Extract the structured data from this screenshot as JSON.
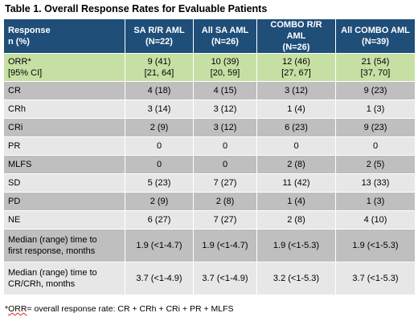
{
  "title": "Table 1. Overall Response Rates for Evaluable Patients",
  "headers": {
    "col0_line1": "Response",
    "col0_line2": "n (%)",
    "col1_line1": "SA R/R AML",
    "col1_line2": "(N=22)",
    "col2_line1": "All SA AML",
    "col2_line2": "(N=26)",
    "col3_line1": "COMBO R/R AML",
    "col3_line2": "(N=26)",
    "col4_line1": "All COMBO AML",
    "col4_line2": "(N=39)"
  },
  "orr_row": {
    "label_line1": "ORR*",
    "label_line2": "[95% CI]",
    "v1_line1": "9 (41)",
    "v1_line2": "[21, 64]",
    "v2_line1": "10 (39)",
    "v2_line2": "[20, 59]",
    "v3_line1": "12 (46)",
    "v3_line2": "[27, 67]",
    "v4_line1": "21 (54)",
    "v4_line2": "[37, 70]"
  },
  "rows": [
    {
      "label": "CR",
      "v1": "4 (18)",
      "v2": "4 (15)",
      "v3": "3 (12)",
      "v4": "9 (23)"
    },
    {
      "label": "CRh",
      "v1": "3 (14)",
      "v2": "3 (12)",
      "v3": "1 (4)",
      "v4": "1 (3)"
    },
    {
      "label": "CRi",
      "v1": "2 (9)",
      "v2": "3 (12)",
      "v3": "6 (23)",
      "v4": "9 (23)"
    },
    {
      "label": "PR",
      "v1": "0",
      "v2": "0",
      "v3": "0",
      "v4": "0"
    },
    {
      "label": "MLFS",
      "v1": "0",
      "v2": "0",
      "v3": "2 (8)",
      "v4": "2 (5)"
    },
    {
      "label": "SD",
      "v1": "5 (23)",
      "v2": "7 (27)",
      "v3": "11 (42)",
      "v4": "13 (33)"
    },
    {
      "label": "PD",
      "v1": "2 (9)",
      "v2": "2 (8)",
      "v3": "1 (4)",
      "v4": "1 (3)"
    },
    {
      "label": "NE",
      "v1": "6 (27)",
      "v2": "7 (27)",
      "v3": "2 (8)",
      "v4": "4 (10)"
    }
  ],
  "median_rows": [
    {
      "label_line1": "Median (range) time to",
      "label_line2": "first response, months",
      "v1": "1.9 (<1-4.7)",
      "v2": "1.9 (<1-4.7)",
      "v3": "1.9 (<1-5.3)",
      "v4": "1.9 (<1-5.3)"
    },
    {
      "label_line1": "Median (range) time to",
      "label_line2": "CR/CRh, months",
      "v1": "3.7 (<1-4.9)",
      "v2": "3.7 (<1-4.9)",
      "v3": "3.2 (<1-5.3)",
      "v4": "3.7 (<1-5.3)"
    }
  ],
  "footnote": {
    "prefix": "*",
    "abbrev": "ORR",
    "text": "= overall response rate: CR + CRh + CRi + PR + MLFS"
  },
  "colors": {
    "header_bg": "#1f4e79",
    "orr_bg": "#c6e0a4",
    "row_dark": "#bfbfbf",
    "row_light": "#e7e7e7"
  }
}
